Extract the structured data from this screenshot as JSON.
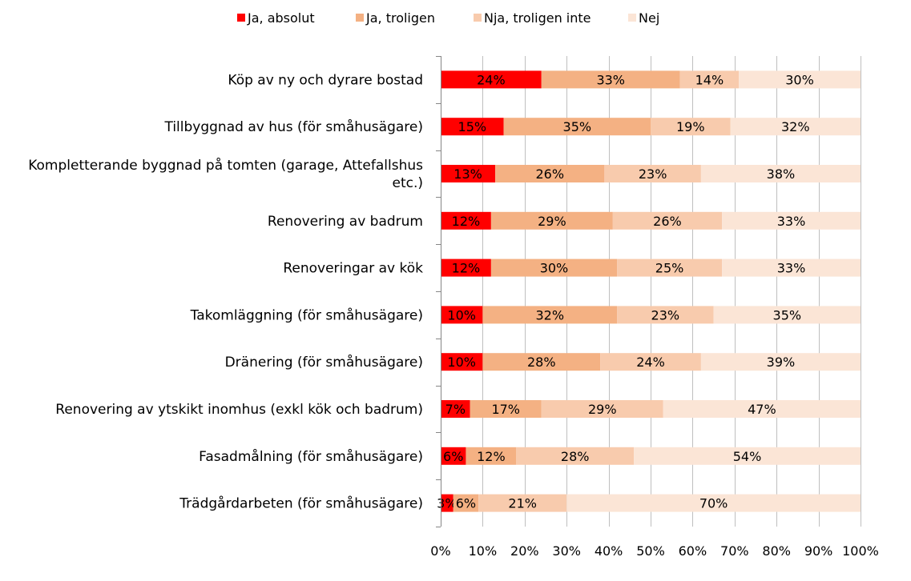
{
  "chart_data": {
    "type": "bar",
    "orientation": "horizontal",
    "stacked": true,
    "percent_stacked": true,
    "title": "",
    "xlabel": "",
    "ylabel": "",
    "xlim": [
      0,
      100
    ],
    "x_ticks": [
      "0%",
      "10%",
      "20%",
      "30%",
      "40%",
      "50%",
      "60%",
      "70%",
      "80%",
      "90%",
      "100%"
    ],
    "grid": "vertical gridlines",
    "legend_position": "top",
    "categories": [
      [
        "Köp av ny och dyrare bostad"
      ],
      [
        "Tillbyggnad av hus (för småhusägare)"
      ],
      [
        "Kompletterande byggnad på tomten (garage, Attefallshus",
        "etc.)"
      ],
      [
        "Renovering av badrum"
      ],
      [
        "Renoveringar av kök"
      ],
      [
        "Takomläggning (för småhusägare)"
      ],
      [
        "Dränering (för småhusägare)"
      ],
      [
        "Renovering av ytskikt inomhus (exkl kök och badrum)"
      ],
      [
        "Fasadmålning (för småhusägare)"
      ],
      [
        "Trädgårdarbeten (för småhusägare)"
      ]
    ],
    "series": [
      {
        "name": "Ja, absolut",
        "color": "#ff0000",
        "values": [
          24,
          15,
          13,
          12,
          12,
          10,
          10,
          7,
          6,
          3
        ]
      },
      {
        "name": "Ja, troligen",
        "color": "#f4b183",
        "values": [
          33,
          35,
          26,
          29,
          30,
          32,
          28,
          17,
          12,
          6
        ]
      },
      {
        "name": "Nja, troligen inte",
        "color": "#f8cbad",
        "values": [
          14,
          19,
          23,
          26,
          25,
          23,
          24,
          29,
          28,
          21
        ]
      },
      {
        "name": "Nej",
        "color": "#fbe5d6",
        "values": [
          30,
          32,
          38,
          33,
          33,
          35,
          39,
          47,
          54,
          70
        ]
      }
    ],
    "value_suffix": "%"
  }
}
